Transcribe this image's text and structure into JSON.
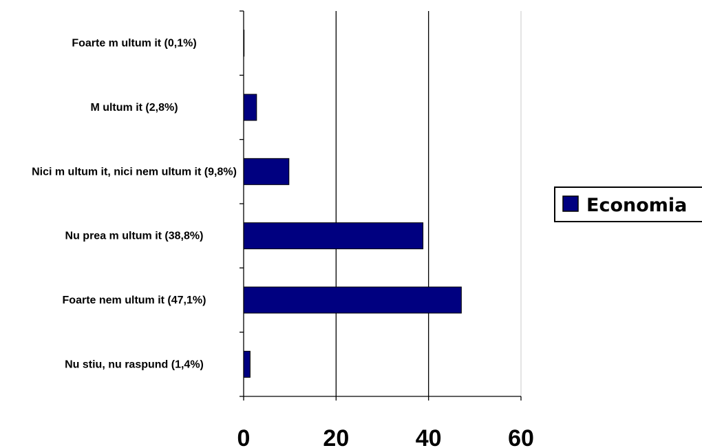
{
  "chart_data": {
    "type": "bar",
    "orientation": "horizontal",
    "categories": [
      "Foarte m ultum it (0,1%)",
      "M ultum it (2,8%)",
      "Nici m ultum it, nici nem ultum it (9,8%)",
      "Nu prea m ultum it (38,8%)",
      "Foarte nem ultum it (47,1%)",
      "Nu stiu, nu raspund (1,4%)"
    ],
    "series": [
      {
        "name": "Economia",
        "values": [
          0.1,
          2.8,
          9.8,
          38.8,
          47.1,
          1.4
        ],
        "color": "#000080"
      }
    ],
    "xlim": [
      0,
      60
    ],
    "xticks": [
      "0",
      "20",
      "40",
      "60"
    ],
    "grid": true,
    "legend": "right",
    "title": "",
    "xlabel": "",
    "ylabel": ""
  }
}
